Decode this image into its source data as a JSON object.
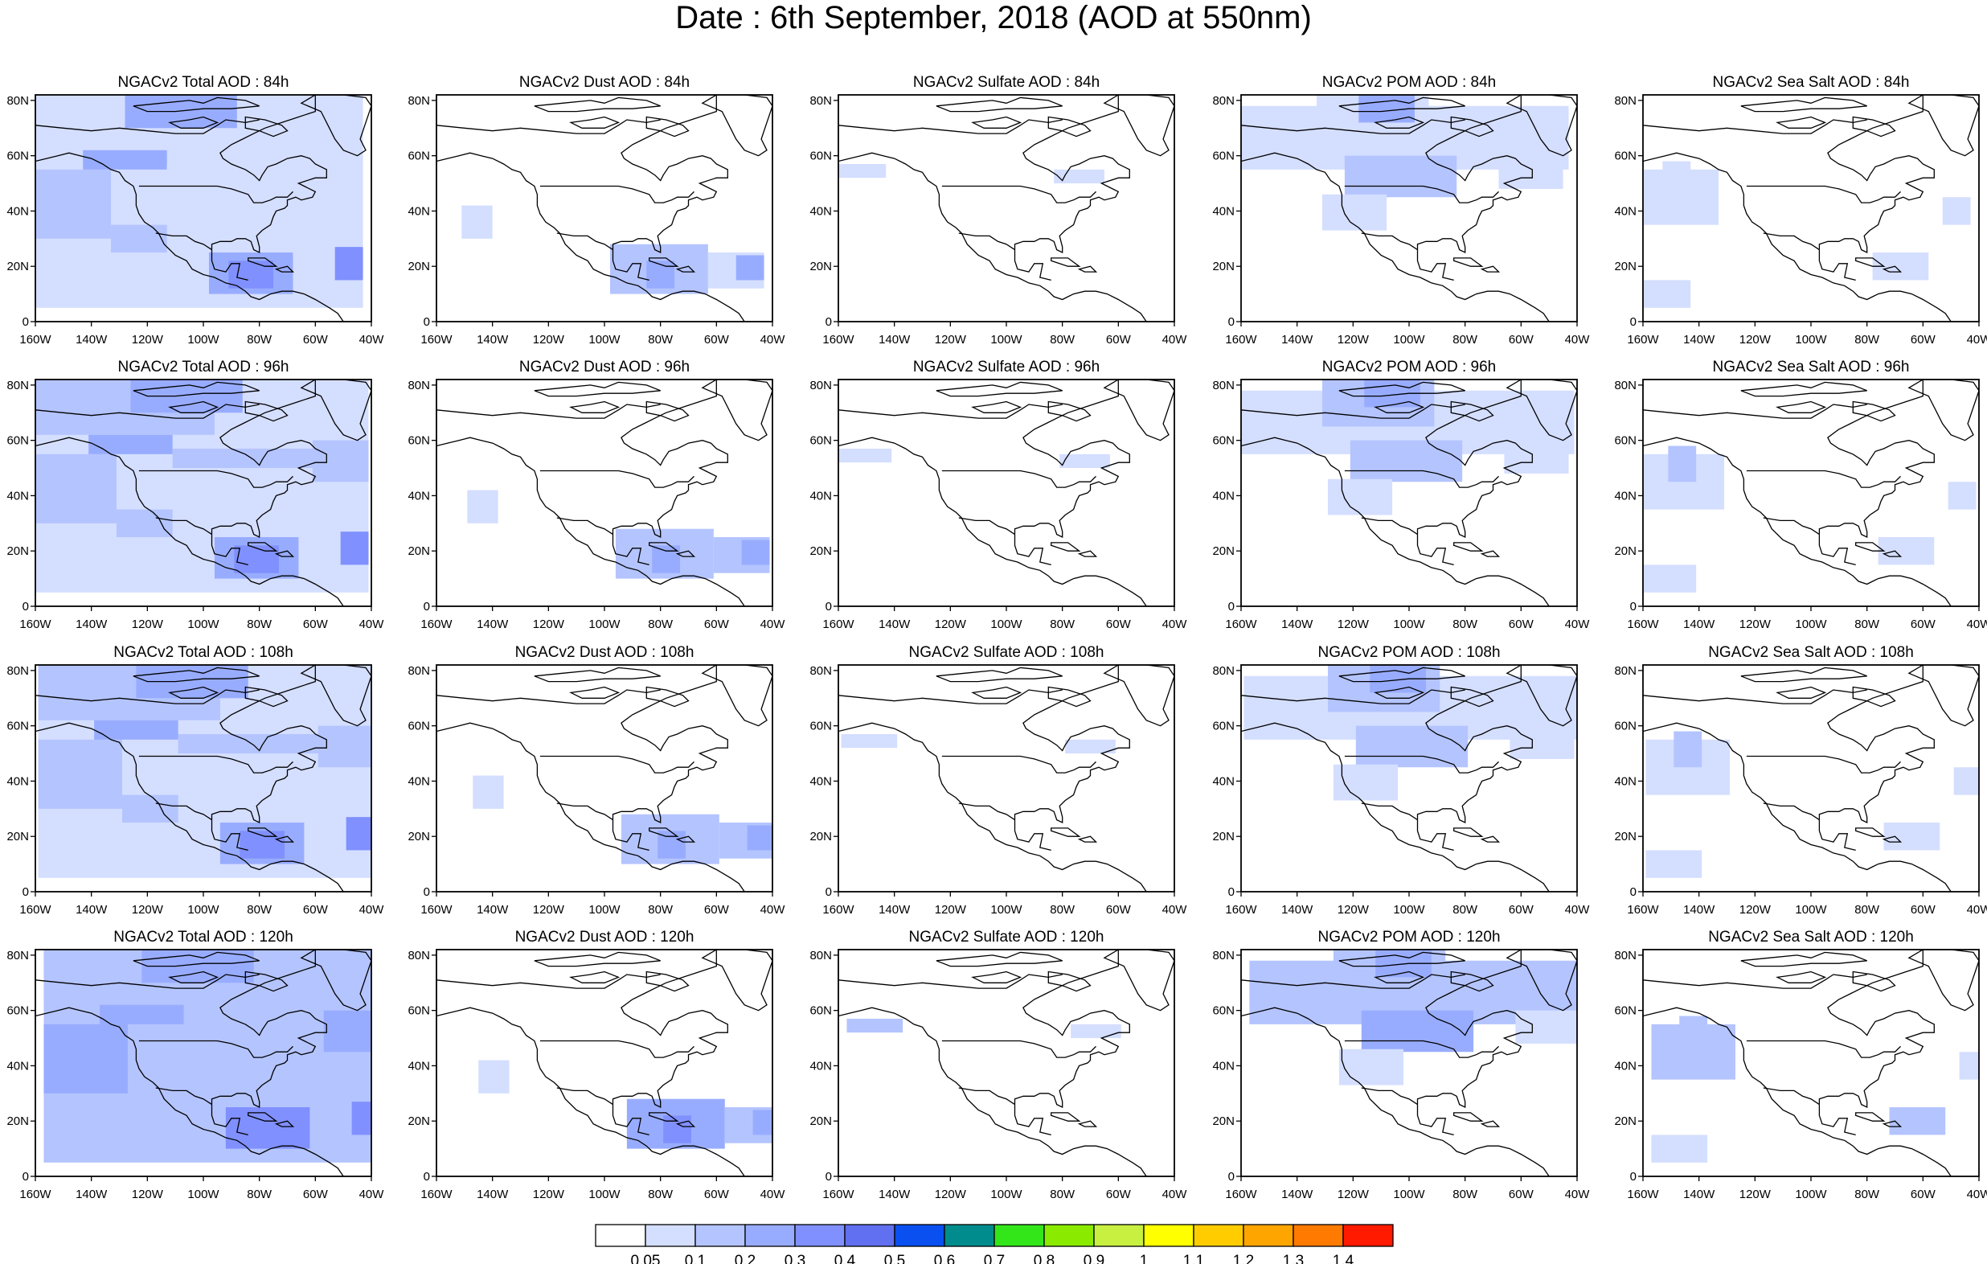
{
  "title": "Date : 6th September, 2018 (AOD at 550nm)",
  "panel_titles": [
    [
      "NGACv2 Total AOD : 84h",
      "NGACv2 Dust AOD : 84h",
      "NGACv2 Sulfate AOD : 84h",
      "NGACv2 POM AOD : 84h",
      "NGACv2 Sea Salt AOD : 84h"
    ],
    [
      "NGACv2 Total AOD : 96h",
      "NGACv2 Dust AOD : 96h",
      "NGACv2 Sulfate AOD : 96h",
      "NGACv2 POM AOD : 96h",
      "NGACv2 Sea Salt AOD : 96h"
    ],
    [
      "NGACv2 Total AOD : 108h",
      "NGACv2 Dust AOD : 108h",
      "NGACv2 Sulfate AOD : 108h",
      "NGACv2 POM AOD : 108h",
      "NGACv2 Sea Salt AOD : 108h"
    ],
    [
      "NGACv2 Total AOD : 120h",
      "NGACv2 Dust AOD : 120h",
      "NGACv2 Sulfate AOD : 120h",
      "NGACv2 POM AOD : 120h",
      "NGACv2 Sea Salt  AOD : 120h"
    ]
  ],
  "lon_ticks": [
    "160W",
    "140W",
    "120W",
    "100W",
    "80W",
    "60W",
    "40W"
  ],
  "lat_ticks": [
    "0",
    "20N",
    "40N",
    "60N",
    "80N"
  ],
  "colorbar": {
    "labels": [
      "0.05",
      "0.1",
      "0.2",
      "0.3",
      "0.4",
      "0.5",
      "0.6",
      "0.7",
      "0.8",
      "0.9",
      "1",
      "1.1",
      "1.2",
      "1.3",
      "1.4"
    ],
    "colors": [
      "#ffffff",
      "#d4deff",
      "#b4c4ff",
      "#98acff",
      "#8090ff",
      "#6070f0",
      "#0a50f0",
      "#008c8c",
      "#33e619",
      "#8aeb00",
      "#c8f040",
      "#ffff00",
      "#ffcc00",
      "#ffa500",
      "#ff7a00",
      "#ff1a00"
    ]
  },
  "regions": {
    "total": [
      [
        -160,
        5,
        -40,
        82,
        1
      ],
      [
        -160,
        62,
        -95,
        82,
        2
      ],
      [
        -125,
        70,
        -85,
        82,
        3
      ],
      [
        -160,
        30,
        -130,
        55,
        2
      ],
      [
        -140,
        55,
        -110,
        62,
        3
      ],
      [
        -110,
        50,
        -60,
        57,
        2
      ],
      [
        -95,
        10,
        -65,
        25,
        3
      ],
      [
        -50,
        15,
        -40,
        27,
        4
      ],
      [
        -88,
        12,
        -72,
        22,
        4
      ],
      [
        -60,
        45,
        -40,
        60,
        2
      ],
      [
        -130,
        25,
        -110,
        35,
        2
      ]
    ],
    "dust": [
      [
        -95,
        10,
        -60,
        28,
        2
      ],
      [
        -60,
        12,
        -40,
        25,
        2
      ],
      [
        -50,
        15,
        -40,
        24,
        3
      ],
      [
        -82,
        12,
        -72,
        22,
        3
      ],
      [
        -148,
        30,
        -137,
        42,
        1
      ]
    ],
    "sulfate": [
      [
        -160,
        52,
        -140,
        57,
        1
      ],
      [
        -80,
        50,
        -62,
        55,
        1
      ]
    ],
    "pom": [
      [
        -160,
        55,
        -40,
        78,
        1
      ],
      [
        -130,
        65,
        -90,
        82,
        2
      ],
      [
        -115,
        72,
        -95,
        82,
        3
      ],
      [
        -120,
        45,
        -80,
        60,
        2
      ],
      [
        -128,
        33,
        -105,
        46,
        1
      ],
      [
        -65,
        48,
        -42,
        60,
        1
      ]
    ],
    "seasalt": [
      [
        -160,
        35,
        -130,
        55,
        1
      ],
      [
        -150,
        45,
        -140,
        58,
        2
      ],
      [
        -50,
        35,
        -40,
        45,
        1
      ],
      [
        -75,
        15,
        -55,
        25,
        1
      ],
      [
        -160,
        5,
        -140,
        15,
        1
      ]
    ]
  },
  "region_scale": [
    0.7,
    0.85,
    1.0,
    1.1
  ]
}
